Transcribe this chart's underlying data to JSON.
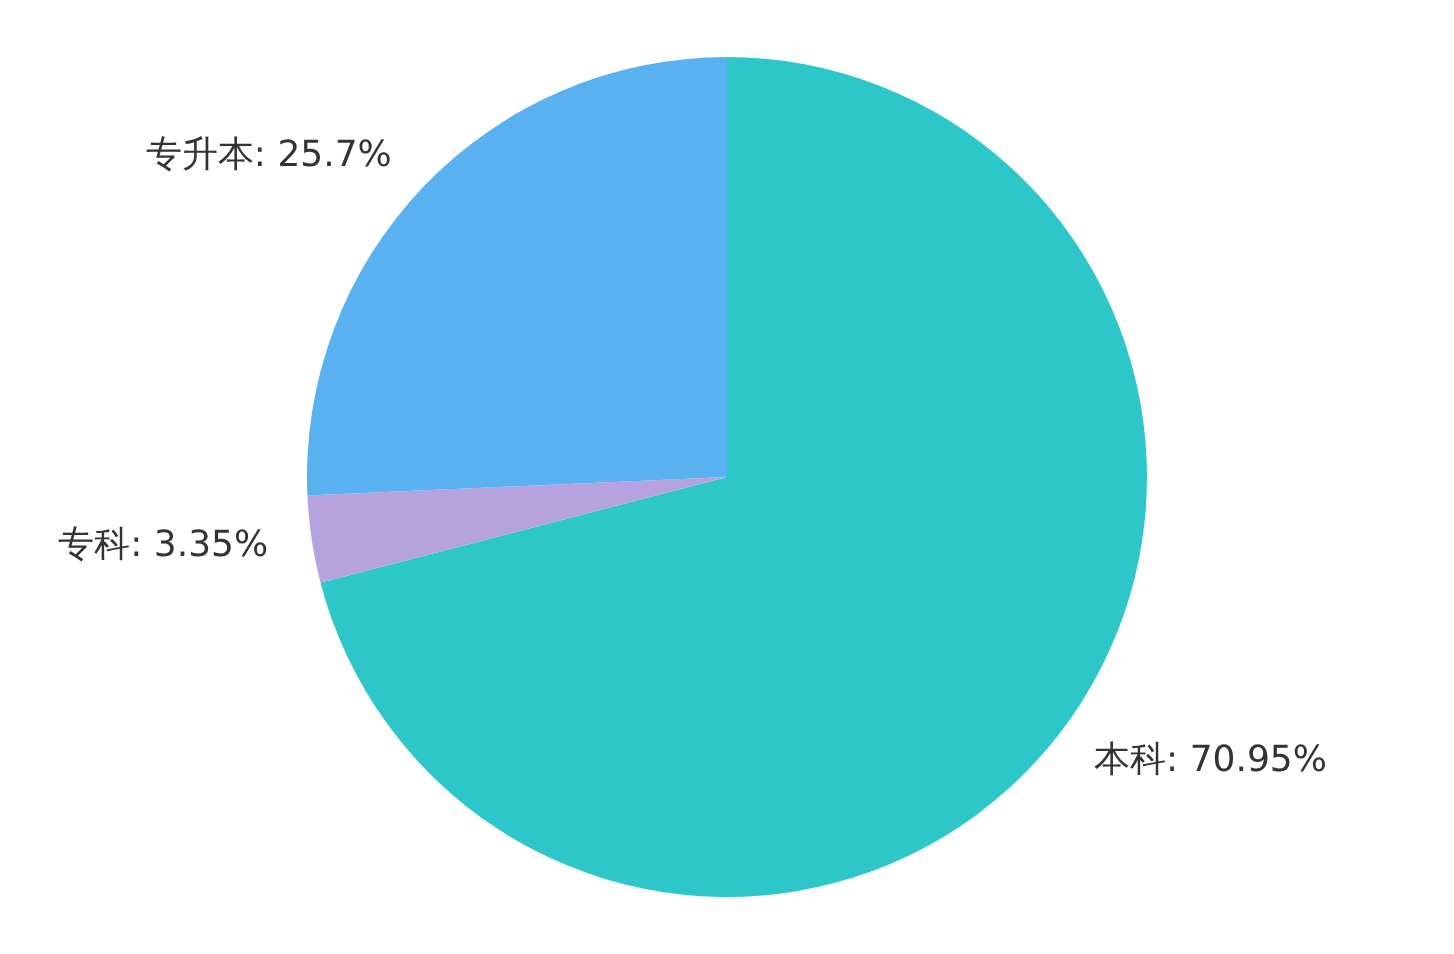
{
  "chart_data": {
    "type": "pie",
    "categories": [
      "本科",
      "专科",
      "专升本"
    ],
    "values": [
      70.95,
      3.35,
      25.7
    ],
    "colors": [
      "#2ec7c9",
      "#b6a2de",
      "#5ab1ef"
    ],
    "value_labels": [
      "70.95%",
      "3.35%",
      "25.7%"
    ]
  }
}
